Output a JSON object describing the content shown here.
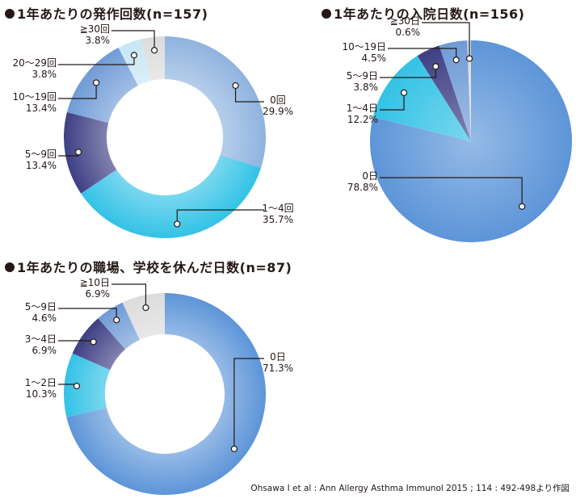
{
  "source": "Ohsawa I et al : Ann Allergy Asthma Immunol 2015 ; 114 : 492-498より作図",
  "chart_data": [
    {
      "type": "pie",
      "title": "1年あたりの発作回数(n=157)",
      "categories": [
        "0回",
        "1～4回",
        "5～9回",
        "10～19回",
        "20～29回",
        "≧30回"
      ],
      "values": [
        29.9,
        35.7,
        13.4,
        13.4,
        3.8,
        3.8
      ],
      "value_labels": [
        "29.9%",
        "35.7%",
        "13.4%",
        "13.4%",
        "3.8%",
        "3.8%"
      ],
      "colors": [
        "#8fb3df",
        "#33c2e6",
        "#3e3f84",
        "#6f9bd6",
        "#c7e6f5",
        "#dcdcdc"
      ]
    },
    {
      "type": "pie",
      "title": "1年あたりの入院日数(n=156)",
      "categories": [
        "0日",
        "1～4日",
        "5～9日",
        "10～19日",
        "≧30日"
      ],
      "values": [
        78.8,
        12.2,
        3.8,
        4.5,
        0.6
      ],
      "value_labels": [
        "78.8%",
        "12.2%",
        "3.8%",
        "4.5%",
        "0.6%"
      ],
      "colors": [
        "#5d95d8",
        "#33c2e6",
        "#3e3f84",
        "#6f9bd6",
        "#dcdcdc"
      ]
    },
    {
      "type": "pie",
      "title": "1年あたりの職場、学校を休んだ日数(n=87)",
      "categories": [
        "0日",
        "1～2日",
        "3～4日",
        "5～9日",
        "≧10日"
      ],
      "values": [
        71.3,
        10.3,
        6.9,
        4.6,
        6.9
      ],
      "value_labels": [
        "71.3%",
        "10.3%",
        "6.9%",
        "4.6%",
        "6.9%"
      ],
      "colors": [
        "#5d95d8",
        "#33c2e6",
        "#3e3f84",
        "#6f9bd6",
        "#dcdcdc"
      ]
    }
  ]
}
